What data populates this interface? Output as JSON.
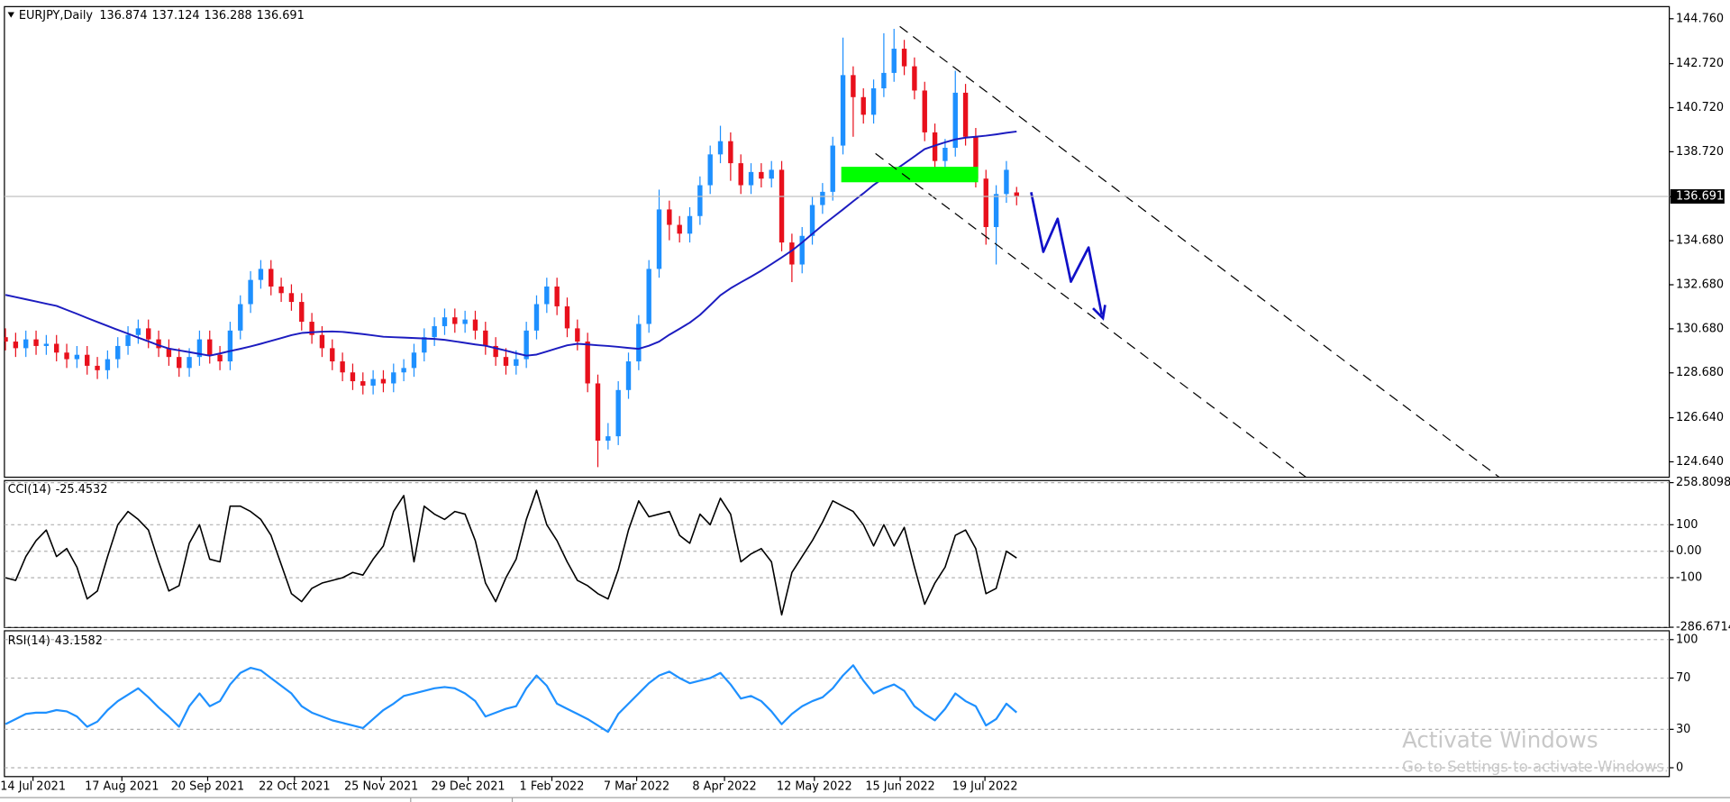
{
  "chart_data": [
    {
      "type": "candlestick",
      "title": "EURJPY,Daily",
      "up_color": "#1e90ff",
      "down_color": "#e8101c",
      "ylim": [
        123.94,
        145.31
      ],
      "yticks": [
        {
          "value": 144.76,
          "label": "144.760"
        },
        {
          "value": 142.72,
          "label": "142.720"
        },
        {
          "value": 140.72,
          "label": "140.720"
        },
        {
          "value": 138.72,
          "label": "138.720"
        },
        {
          "value": 136.68,
          "label": "136.680"
        },
        {
          "value": 134.68,
          "label": "134.680"
        },
        {
          "value": 132.68,
          "label": "132.680"
        },
        {
          "value": 130.68,
          "label": "130.680"
        },
        {
          "value": 128.68,
          "label": "128.680"
        },
        {
          "value": 126.64,
          "label": "126.640"
        },
        {
          "value": 124.64,
          "label": "124.640"
        }
      ],
      "xlim": [
        -0.1,
        162.9
      ],
      "xticks": [
        {
          "value": 2.7,
          "label": "14 Jul 2021"
        },
        {
          "value": 11.4,
          "label": "17 Aug 2021"
        },
        {
          "value": 19.8,
          "label": "20 Sep 2021"
        },
        {
          "value": 28.3,
          "label": "22 Oct 2021"
        },
        {
          "value": 36.8,
          "label": "25 Nov 2021"
        },
        {
          "value": 45.3,
          "label": "29 Dec 2021"
        },
        {
          "value": 53.5,
          "label": "1 Feb 2022"
        },
        {
          "value": 61.8,
          "label": "7 Mar 2022"
        },
        {
          "value": 70.4,
          "label": "8 Apr 2022"
        },
        {
          "value": 79.2,
          "label": "12 May 2022"
        },
        {
          "value": 87.6,
          "label": "15 Jun 2022"
        },
        {
          "value": 95.9,
          "label": "19 Jul 2022"
        }
      ],
      "grid": false,
      "open": [
        130.3,
        130.1,
        129.8,
        130.2,
        129.9,
        130.0,
        129.6,
        129.3,
        129.5,
        129.0,
        128.8,
        129.3,
        129.9,
        130.4,
        130.7,
        130.2,
        129.8,
        129.4,
        128.9,
        129.4,
        130.2,
        129.5,
        129.2,
        130.6,
        131.8,
        132.9,
        133.4,
        132.6,
        132.3,
        131.9,
        131.0,
        130.4,
        129.8,
        129.2,
        128.7,
        128.3,
        128.1,
        128.4,
        128.2,
        128.7,
        128.9,
        129.6,
        130.3,
        130.8,
        131.2,
        130.9,
        131.1,
        130.6,
        129.9,
        129.4,
        129.0,
        129.3,
        130.6,
        131.8,
        132.6,
        131.7,
        130.7,
        130.1,
        128.2,
        125.6,
        125.8,
        127.9,
        129.2,
        130.9,
        133.4,
        136.1,
        135.4,
        135.0,
        135.8,
        137.2,
        138.6,
        139.2,
        138.2,
        137.2,
        137.8,
        137.5,
        137.9,
        134.6,
        133.6,
        134.9,
        136.3,
        136.9,
        139.0,
        142.2,
        141.2,
        140.4,
        141.6,
        142.3,
        143.4,
        142.6,
        141.5,
        139.6,
        138.3,
        138.9,
        141.4,
        139.4,
        137.5,
        135.3,
        136.8,
        136.874
      ],
      "high": [
        130.7,
        130.5,
        130.6,
        130.6,
        130.4,
        130.4,
        130.0,
        129.9,
        129.9,
        129.4,
        129.7,
        130.3,
        130.8,
        131.1,
        131.1,
        130.6,
        130.2,
        129.8,
        129.8,
        130.6,
        130.6,
        129.9,
        131.0,
        132.2,
        133.3,
        133.8,
        133.8,
        133.0,
        132.7,
        132.3,
        131.4,
        130.8,
        130.2,
        129.6,
        129.1,
        128.7,
        128.8,
        128.8,
        129.1,
        129.3,
        130.0,
        130.7,
        131.2,
        131.6,
        131.6,
        131.5,
        131.5,
        131.0,
        130.3,
        129.8,
        129.7,
        131.0,
        132.2,
        133.0,
        133.0,
        132.1,
        131.1,
        130.5,
        128.6,
        126.4,
        128.3,
        129.6,
        131.3,
        133.8,
        137.0,
        136.5,
        135.8,
        136.2,
        137.6,
        139.0,
        139.9,
        139.6,
        138.6,
        138.2,
        138.2,
        138.3,
        138.3,
        135.0,
        135.3,
        136.7,
        137.3,
        139.4,
        143.9,
        142.6,
        141.6,
        142.0,
        144.1,
        144.3,
        143.8,
        143.0,
        141.9,
        140.0,
        139.3,
        142.4,
        141.8,
        139.8,
        137.9,
        137.2,
        138.3,
        137.124
      ],
      "low": [
        129.7,
        129.4,
        129.4,
        129.5,
        129.5,
        129.2,
        128.9,
        128.9,
        128.6,
        128.4,
        128.4,
        128.9,
        129.5,
        130.0,
        129.8,
        129.4,
        129.0,
        128.5,
        128.5,
        129.0,
        129.1,
        128.8,
        128.8,
        130.2,
        131.4,
        132.5,
        132.2,
        131.9,
        131.5,
        130.6,
        130.0,
        129.4,
        128.8,
        128.3,
        127.9,
        127.7,
        127.7,
        127.8,
        127.8,
        128.3,
        128.5,
        129.2,
        129.9,
        130.4,
        130.5,
        130.5,
        130.2,
        129.5,
        129.0,
        128.6,
        128.6,
        128.9,
        130.2,
        131.4,
        131.3,
        130.3,
        129.7,
        127.8,
        124.4,
        125.2,
        125.4,
        127.5,
        128.8,
        130.5,
        133.0,
        134.7,
        134.6,
        134.6,
        135.4,
        136.8,
        138.2,
        137.4,
        136.8,
        136.8,
        137.1,
        137.1,
        134.2,
        132.8,
        133.2,
        134.5,
        135.9,
        136.5,
        138.6,
        139.4,
        140.0,
        140.0,
        141.2,
        141.9,
        142.2,
        141.1,
        139.2,
        137.4,
        137.9,
        138.5,
        139.0,
        137.1,
        134.5,
        133.6,
        136.4,
        136.288
      ],
      "close": [
        130.1,
        129.8,
        130.2,
        129.9,
        130.0,
        129.6,
        129.3,
        129.5,
        129.0,
        128.8,
        129.3,
        129.9,
        130.4,
        130.7,
        130.2,
        129.8,
        129.4,
        128.9,
        129.4,
        130.2,
        129.5,
        129.2,
        130.6,
        131.8,
        132.9,
        133.4,
        132.6,
        132.3,
        131.9,
        131.0,
        130.4,
        129.8,
        129.2,
        128.7,
        128.3,
        128.1,
        128.4,
        128.2,
        128.7,
        128.9,
        129.6,
        130.3,
        130.8,
        131.2,
        130.9,
        131.1,
        130.6,
        129.9,
        129.4,
        129.0,
        129.3,
        130.6,
        131.8,
        132.6,
        131.7,
        130.7,
        130.1,
        128.2,
        125.6,
        125.8,
        127.9,
        129.2,
        130.9,
        133.4,
        136.1,
        135.4,
        135.0,
        135.8,
        137.2,
        138.6,
        139.2,
        138.2,
        137.2,
        137.8,
        137.5,
        137.9,
        134.6,
        133.6,
        134.9,
        136.3,
        136.9,
        139.0,
        142.2,
        141.2,
        140.4,
        141.6,
        142.3,
        143.4,
        142.6,
        141.5,
        139.6,
        138.3,
        138.9,
        141.4,
        139.4,
        137.5,
        135.3,
        136.8,
        137.9,
        136.691
      ],
      "ma": {
        "color": "#1c1cc0",
        "values": [
          132.22,
          132.12,
          132.02,
          131.92,
          131.82,
          131.72,
          131.54,
          131.36,
          131.17,
          130.99,
          130.81,
          130.63,
          130.46,
          130.28,
          130.11,
          129.93,
          129.78,
          129.7,
          129.62,
          129.54,
          129.46,
          129.56,
          129.67,
          129.77,
          129.88,
          130.0,
          130.13,
          130.26,
          130.39,
          130.49,
          130.52,
          130.55,
          130.56,
          130.54,
          130.49,
          130.44,
          130.38,
          130.32,
          130.3,
          130.28,
          130.26,
          130.24,
          130.22,
          130.18,
          130.11,
          130.04,
          129.97,
          129.91,
          129.8,
          129.69,
          129.57,
          129.46,
          129.51,
          129.65,
          129.79,
          129.93,
          130.0,
          129.97,
          129.93,
          129.9,
          129.86,
          129.81,
          129.77,
          129.91,
          130.1,
          130.41,
          130.68,
          130.96,
          131.31,
          131.75,
          132.2,
          132.52,
          132.79,
          133.05,
          133.32,
          133.62,
          133.92,
          134.23,
          134.6,
          134.99,
          135.38,
          135.74,
          136.1,
          136.47,
          136.83,
          137.21,
          137.53,
          137.86,
          138.18,
          138.51,
          138.84,
          139.0,
          139.15,
          139.28,
          139.36,
          139.4,
          139.45,
          139.51,
          139.58,
          139.64
        ]
      }
    },
    {
      "type": "line",
      "title": "CCI(14)",
      "color": "#000000",
      "grid": true,
      "ylim": [
        -287.5,
        266.7
      ],
      "yticks": [
        258.8098,
        100,
        {
          "value": 0,
          "label": "0.00"
        },
        -100,
        -286.6714
      ],
      "values": [
        -100,
        -110,
        -20,
        40,
        80,
        -20,
        10,
        -60,
        -180,
        -150,
        -20,
        100,
        150,
        120,
        80,
        -40,
        -150,
        -130,
        30,
        100,
        -30,
        -40,
        170,
        170,
        150,
        120,
        60,
        -50,
        -160,
        -190,
        -140,
        -120,
        -110,
        -100,
        -80,
        -90,
        -30,
        20,
        150,
        210,
        -40,
        170,
        140,
        120,
        150,
        140,
        40,
        -120,
        -190,
        -100,
        -30,
        120,
        230,
        100,
        40,
        -40,
        -110,
        -130,
        -160,
        -180,
        -70,
        80,
        190,
        130,
        140,
        150,
        60,
        30,
        140,
        100,
        200,
        140,
        -40,
        -10,
        10,
        -40,
        -240,
        -80,
        -20,
        40,
        110,
        190,
        170,
        150,
        100,
        20,
        100,
        20,
        90,
        -60,
        -200,
        -120,
        -60,
        60,
        80,
        10,
        -160,
        -140,
        0,
        -25.4532
      ]
    },
    {
      "type": "line",
      "title": "RSI(14)",
      "color": "#1e90ff",
      "grid": true,
      "ylim": [
        -6.9,
        106.9
      ],
      "yticks": [
        100,
        70,
        30,
        0
      ],
      "values": [
        34,
        38,
        42,
        43,
        43,
        45,
        44,
        40,
        32,
        36,
        45,
        52,
        57,
        62,
        55,
        47,
        40,
        32,
        48,
        58,
        48,
        52,
        65,
        74,
        78,
        76,
        70,
        64,
        58,
        48,
        43,
        40,
        37,
        35,
        33,
        31,
        38,
        45,
        50,
        56,
        58,
        60,
        62,
        63,
        62,
        58,
        52,
        40,
        43,
        46,
        48,
        62,
        72,
        64,
        50,
        46,
        42,
        38,
        33,
        28,
        42,
        50,
        58,
        66,
        72,
        75,
        70,
        66,
        68,
        70,
        74,
        65,
        54,
        56,
        52,
        44,
        34,
        42,
        48,
        52,
        55,
        62,
        72,
        80,
        68,
        58,
        62,
        65,
        60,
        48,
        42,
        37,
        46,
        58,
        52,
        48,
        33,
        38,
        50,
        43.1582
      ]
    }
  ],
  "watermark": {
    "title": "Activate Windows",
    "subtitle": "Go to Settings to activate Windows."
  }
}
